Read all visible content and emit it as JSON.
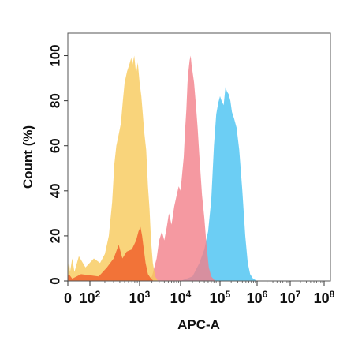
{
  "chart_data": {
    "type": "area",
    "title": "",
    "xlabel": "APC-A",
    "ylabel": "Count  (%)",
    "x_scale": "log",
    "xlim": [
      0,
      100000000
    ],
    "ylim": [
      0,
      110
    ],
    "grid": false,
    "legend": "none",
    "x_ticks": [
      {
        "value": 0,
        "base": "0",
        "exp": ""
      },
      {
        "value": 100,
        "base": "10",
        "exp": "2"
      },
      {
        "value": 1000,
        "base": "10",
        "exp": "3"
      },
      {
        "value": 10000,
        "base": "10",
        "exp": "4"
      },
      {
        "value": 100000,
        "base": "10",
        "exp": "5"
      },
      {
        "value": 1000000,
        "base": "10",
        "exp": "6"
      },
      {
        "value": 10000000,
        "base": "10",
        "exp": "7"
      },
      {
        "value": 100000000,
        "base": "10",
        "exp": "8"
      }
    ],
    "y_ticks": [
      0,
      20,
      40,
      60,
      80,
      100
    ],
    "series": [
      {
        "color": "#52c6f2",
        "opacity": 0.85,
        "points": [
          [
            10000,
            0
          ],
          [
            20000,
            2
          ],
          [
            30000,
            8
          ],
          [
            40000,
            14
          ],
          [
            50000,
            22
          ],
          [
            60000,
            36
          ],
          [
            70000,
            60
          ],
          [
            80000,
            74
          ],
          [
            90000,
            79
          ],
          [
            100000,
            82
          ],
          [
            110000,
            80
          ],
          [
            125000,
            78
          ],
          [
            140000,
            86
          ],
          [
            155000,
            84
          ],
          [
            170000,
            83
          ],
          [
            190000,
            80
          ],
          [
            210000,
            75
          ],
          [
            240000,
            72
          ],
          [
            280000,
            68
          ],
          [
            330000,
            58
          ],
          [
            400000,
            40
          ],
          [
            480000,
            20
          ],
          [
            560000,
            8
          ],
          [
            650000,
            3
          ],
          [
            780000,
            1
          ],
          [
            1000000,
            0
          ]
        ]
      },
      {
        "color": "#f2808a",
        "opacity": 0.8,
        "points": [
          [
            1500,
            0
          ],
          [
            2000,
            2
          ],
          [
            2600,
            10
          ],
          [
            3000,
            18
          ],
          [
            3500,
            22
          ],
          [
            4000,
            18
          ],
          [
            4600,
            24
          ],
          [
            5200,
            30
          ],
          [
            6000,
            25
          ],
          [
            7000,
            33
          ],
          [
            8000,
            38
          ],
          [
            9000,
            42
          ],
          [
            10000,
            40
          ],
          [
            11000,
            48
          ],
          [
            12000,
            55
          ],
          [
            13000,
            67
          ],
          [
            14000,
            76
          ],
          [
            15000,
            88
          ],
          [
            16000,
            94
          ],
          [
            17000,
            98
          ],
          [
            18000,
            100
          ],
          [
            19000,
            96
          ],
          [
            20000,
            93
          ],
          [
            22000,
            88
          ],
          [
            24000,
            80
          ],
          [
            27000,
            68
          ],
          [
            30000,
            55
          ],
          [
            35000,
            38
          ],
          [
            40000,
            28
          ],
          [
            46000,
            15
          ],
          [
            52000,
            6
          ],
          [
            60000,
            2
          ],
          [
            75000,
            0
          ]
        ]
      },
      {
        "color": "#f7c95a",
        "opacity": 0.8,
        "points": [
          [
            0,
            0
          ],
          [
            0,
            12
          ],
          [
            2,
            6
          ],
          [
            5,
            10
          ],
          [
            10,
            4
          ],
          [
            20,
            10
          ],
          [
            30,
            4
          ],
          [
            50,
            11
          ],
          [
            80,
            6
          ],
          [
            120,
            10
          ],
          [
            160,
            8
          ],
          [
            200,
            12
          ],
          [
            240,
            20
          ],
          [
            280,
            35
          ],
          [
            310,
            52
          ],
          [
            340,
            60
          ],
          [
            380,
            65
          ],
          [
            420,
            70
          ],
          [
            460,
            80
          ],
          [
            500,
            88
          ],
          [
            560,
            93
          ],
          [
            620,
            96
          ],
          [
            680,
            99
          ],
          [
            720,
            96
          ],
          [
            780,
            100
          ],
          [
            850,
            92
          ],
          [
            920,
            97
          ],
          [
            1000,
            88
          ],
          [
            1100,
            82
          ],
          [
            1200,
            74
          ],
          [
            1300,
            66
          ],
          [
            1450,
            58
          ],
          [
            1600,
            42
          ],
          [
            1750,
            32
          ],
          [
            1900,
            18
          ],
          [
            2100,
            8
          ],
          [
            2400,
            2
          ],
          [
            2800,
            0
          ]
        ]
      },
      {
        "color": "#f05a28",
        "opacity": 0.8,
        "points": [
          [
            0,
            0
          ],
          [
            0,
            2
          ],
          [
            5,
            3
          ],
          [
            20,
            1
          ],
          [
            60,
            3
          ],
          [
            150,
            2
          ],
          [
            220,
            6
          ],
          [
            300,
            10
          ],
          [
            380,
            16
          ],
          [
            450,
            10
          ],
          [
            550,
            13
          ],
          [
            700,
            14
          ],
          [
            850,
            18
          ],
          [
            950,
            22
          ],
          [
            1050,
            24
          ],
          [
            1150,
            20
          ],
          [
            1250,
            15
          ],
          [
            1400,
            8
          ],
          [
            1600,
            3
          ],
          [
            1900,
            1
          ],
          [
            2200,
            0
          ]
        ]
      }
    ]
  }
}
